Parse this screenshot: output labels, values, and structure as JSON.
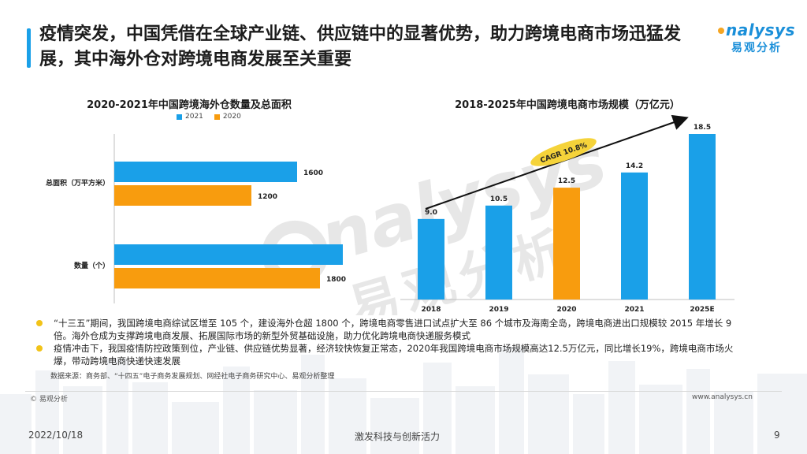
{
  "slide": {
    "title": "疫情突发，中国凭借在全球产业链、供应链中的显著优势，助力跨境电商市场迅猛发展，其中海外仓对跨境电商发展至关重要",
    "logo_en": "nalysys",
    "logo_cn": "易观分析",
    "watermark_en": "nalysys",
    "watermark_cn": "易观分析",
    "accent_color": "#1aa0e8"
  },
  "chart_data": [
    {
      "type": "bar",
      "orientation": "horizontal",
      "title": "2020-2021年中国跨境海外仓数量及总面积",
      "categories": [
        "总面积（万平方米）",
        "数量（个）"
      ],
      "series": [
        {
          "name": "2021",
          "values": [
            1600,
            2000
          ],
          "color": "#1aa0e8"
        },
        {
          "name": "2020",
          "values": [
            1200,
            1800
          ],
          "color": "#f89c0e"
        }
      ],
      "xlim": [
        0,
        2000
      ],
      "grid": false,
      "legend": "top"
    },
    {
      "type": "bar",
      "orientation": "vertical",
      "title": "2018-2025年中国跨境电商市场规模（万亿元）",
      "categories": [
        "2018",
        "2019",
        "2020",
        "2021",
        "2025E"
      ],
      "values": [
        9.0,
        10.5,
        12.5,
        14.2,
        18.5
      ],
      "value_labels": [
        "9.0",
        "10.5",
        "12.5",
        "14.2",
        "18.5"
      ],
      "colors": [
        "#1aa0e8",
        "#1aa0e8",
        "#f89c0e",
        "#1aa0e8",
        "#1aa0e8"
      ],
      "ylim": [
        0,
        18.5
      ],
      "annotation": "CAGR 10.8%",
      "annotation_color": "#f5d33a",
      "grid": false
    }
  ],
  "bullets": [
    "“十三五”期间，我国跨境电商综试区增至 105 个，建设海外仓超 1800 个，跨境电商零售进口试点扩大至 86 个城市及海南全岛，跨境电商进出口规模较 2015 年增长 9 倍。海外仓成为支撑跨境电商发展、拓展国际市场的新型外贸基础设施，助力优化跨境电商快递服务模式",
    "疫情冲击下，我国疫情防控政策到位，产业链、供应链优势显著，经济较快恢复正常态，2020年我国跨境电商市场规模高达12.5万亿元，同比增长19%，跨境电商市场火爆，带动跨境电商快递快速发展"
  ],
  "source": "数据来源：商务部、“十四五”电子商务发展规划、网经社电子商务研究中心、易观分析整理",
  "footer": {
    "copyright": "© 易观分析",
    "website": "www.analysys.cn",
    "date": "2022/10/18",
    "tagline": "激发科技与创新活力",
    "page": "9"
  }
}
